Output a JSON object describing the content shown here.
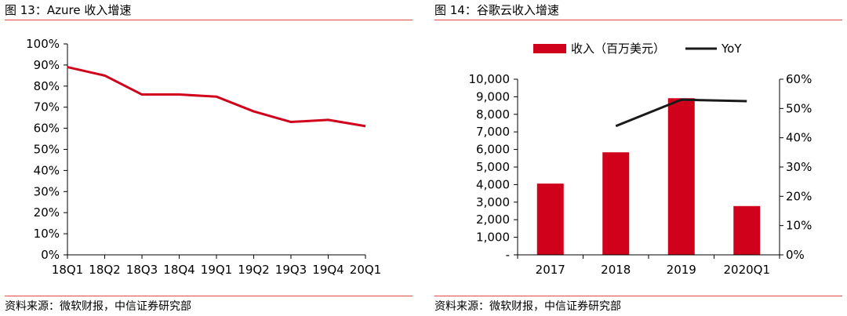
{
  "colors": {
    "accent": "#d0021b",
    "yoy_line": "#1a1a1a",
    "rule": "#e34a4a",
    "axis": "#000000"
  },
  "charts": [
    {
      "caption": "图 13：Azure 收入增速",
      "source": "资料来源：微软财报，中信证券研究部"
    },
    {
      "caption": "图 14：谷歌云收入增速",
      "source": "资料来源：微软财报，中信证券研究部"
    }
  ],
  "chart_data": [
    {
      "type": "line",
      "title": "Azure 收入增速",
      "categories": [
        "18Q1",
        "18Q2",
        "18Q3",
        "18Q4",
        "19Q1",
        "19Q2",
        "19Q3",
        "19Q4",
        "20Q1"
      ],
      "series": [
        {
          "values": [
            89,
            85,
            76,
            76,
            75,
            68,
            63,
            64,
            61
          ]
        }
      ],
      "ylim": [
        0,
        100
      ],
      "yticks": [
        "0%",
        "10%",
        "20%",
        "30%",
        "40%",
        "50%",
        "60%",
        "70%",
        "80%",
        "90%",
        "100%"
      ],
      "grid": false
    },
    {
      "type": "bar",
      "title": "谷歌云收入增速",
      "categories": [
        "2017",
        "2018",
        "2019",
        "2020Q1"
      ],
      "series": [
        {
          "name": "收入（百万美元）",
          "type": "bar",
          "axis": "left",
          "values": [
            4056,
            5838,
            8918,
            2777
          ]
        },
        {
          "name": "YoY",
          "type": "line",
          "axis": "right",
          "values": [
            null,
            44,
            53,
            52.5
          ]
        }
      ],
      "ylim": [
        0,
        10000
      ],
      "y2lim": [
        0,
        60
      ],
      "yticks": [
        "-",
        "1,000",
        "2,000",
        "3,000",
        "4,000",
        "5,000",
        "6,000",
        "7,000",
        "8,000",
        "9,000",
        "10,000"
      ],
      "y2ticks": [
        "0%",
        "10%",
        "20%",
        "30%",
        "40%",
        "50%",
        "60%"
      ],
      "legend": "top-center",
      "grid": false
    }
  ]
}
